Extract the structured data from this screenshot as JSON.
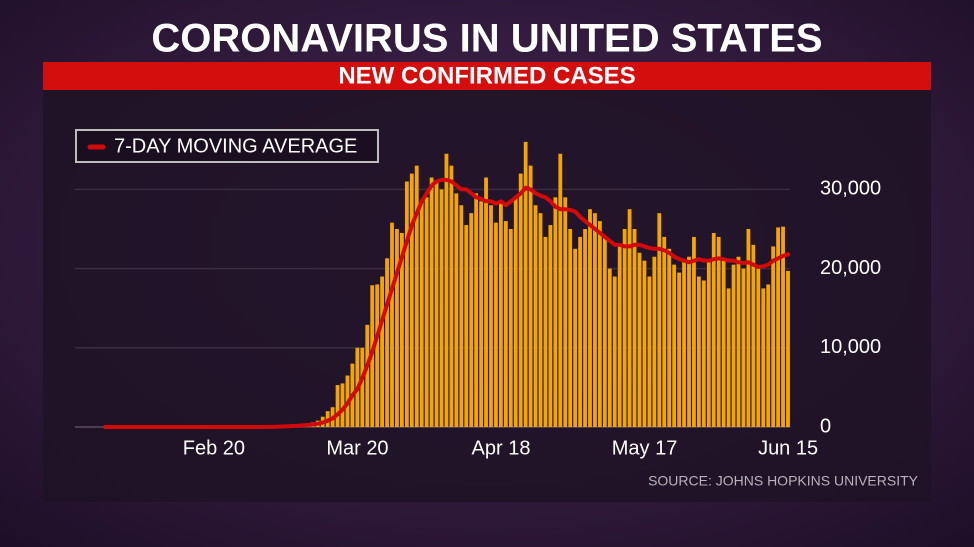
{
  "chart_data": {
    "type": "bar",
    "title": "CORONAVIRUS IN UNITED STATES",
    "subtitle": "NEW CONFIRMED CASES",
    "source": "SOURCE: JOHNS HOPKINS UNIVERSITY",
    "categories": [
      null,
      null,
      null,
      null,
      null,
      null,
      null,
      null,
      null,
      null,
      null,
      null,
      null,
      null,
      null,
      null,
      null,
      null,
      null,
      null,
      null,
      null,
      "Feb 20",
      null,
      null,
      null,
      null,
      null,
      null,
      null,
      null,
      null,
      null,
      null,
      null,
      null,
      null,
      null,
      null,
      null,
      null,
      null,
      null,
      null,
      null,
      null,
      null,
      null,
      null,
      null,
      null,
      "Mar 20",
      null,
      null,
      null,
      null,
      null,
      null,
      null,
      null,
      null,
      null,
      null,
      null,
      null,
      null,
      null,
      null,
      null,
      null,
      null,
      null,
      null,
      null,
      null,
      null,
      null,
      null,
      null,
      null,
      "Apr 18",
      null,
      null,
      null,
      null,
      null,
      null,
      null,
      null,
      null,
      null,
      null,
      null,
      null,
      null,
      null,
      null,
      null,
      null,
      null,
      null,
      null,
      null,
      null,
      null,
      null,
      null,
      null,
      null,
      "May 17",
      null,
      null,
      null,
      null,
      null,
      null,
      null,
      null,
      null,
      null,
      null,
      null,
      null,
      null,
      null,
      null,
      null,
      null,
      null,
      null,
      null,
      null,
      null,
      null,
      null,
      null,
      null,
      null,
      "Jun 15"
    ],
    "series": [
      {
        "color": "#f4a600",
        "values": [
          0,
          0,
          0,
          0,
          0,
          0,
          0,
          0,
          0,
          0,
          0,
          0,
          0,
          0,
          0,
          0,
          0,
          0,
          0,
          0,
          0,
          0,
          0,
          0,
          0,
          0,
          0,
          0,
          0,
          0,
          0,
          0,
          0,
          20,
          40,
          60,
          100,
          130,
          200,
          250,
          300,
          500,
          600,
          800,
          1300,
          2000,
          2500,
          5300,
          5500,
          6500,
          8000,
          10000,
          10000,
          12900,
          17900,
          18000,
          19000,
          21300,
          25800,
          25000,
          24500,
          31000,
          32000,
          33000,
          28500,
          29000,
          31500,
          31000,
          30000,
          34500,
          33000,
          29500,
          28000,
          25500,
          27000,
          29500,
          28500,
          31500,
          28000,
          25800,
          28500,
          26000,
          25000,
          29000,
          32000,
          36000,
          33000,
          28000,
          27000,
          24000,
          25500,
          29000,
          34500,
          29000,
          25000,
          22500,
          24000,
          25000,
          27500,
          27000,
          26000,
          24000,
          20000,
          19000,
          23000,
          25000,
          27500,
          25000,
          22000,
          21000,
          19000,
          21500,
          27000,
          24000,
          22500,
          20500,
          19500,
          21000,
          21500,
          24000,
          19000,
          18500,
          21000,
          24500,
          24000,
          21000,
          17500,
          20500,
          21500,
          20000,
          25000,
          23000,
          20000,
          17500,
          18000,
          22800,
          25200,
          25300,
          19700
        ]
      },
      {
        "name": "7-DAY MOVING AVERAGE",
        "type": "line",
        "color": "#d20a0a",
        "values": [
          0,
          0,
          0,
          0,
          0,
          0,
          0,
          0,
          0,
          0,
          0,
          0,
          0,
          0,
          0,
          0,
          0,
          0,
          0,
          0,
          0,
          0,
          0,
          0,
          0,
          0,
          0,
          0,
          0,
          0,
          0,
          0,
          0,
          10,
          20,
          40,
          60,
          90,
          120,
          160,
          200,
          260,
          330,
          420,
          560,
          800,
          1100,
          1600,
          2200,
          3000,
          4000,
          4800,
          6200,
          7800,
          9500,
          11500,
          13500,
          15500,
          17500,
          19500,
          21500,
          23500,
          25500,
          27000,
          28500,
          29500,
          30500,
          31000,
          31200,
          31200,
          31000,
          30500,
          30000,
          30000,
          29500,
          29000,
          28800,
          28500,
          28500,
          28200,
          28500,
          28000,
          28500,
          29000,
          29500,
          30200,
          30000,
          29500,
          29200,
          29000,
          28500,
          27800,
          27500,
          27500,
          27400,
          27200,
          26500,
          26000,
          25500,
          25000,
          24500,
          24000,
          23500,
          23000,
          23000,
          22800,
          22800,
          23000,
          23000,
          22800,
          22600,
          22500,
          22500,
          22300,
          22000,
          21500,
          21200,
          21000,
          20800,
          21000,
          21200,
          21000,
          21000,
          21200,
          21300,
          21200,
          21000,
          21000,
          20800,
          20700,
          20800,
          20500,
          20200,
          20300,
          20500,
          21000,
          21300,
          21600,
          21800
        ]
      }
    ],
    "ylim": [
      0,
      37500
    ],
    "yticks": [
      0,
      {
        "value": 10000,
        "label": "10,000"
      },
      {
        "value": 20000,
        "label": "20,000"
      },
      {
        "value": 30000,
        "label": "30,000"
      }
    ],
    "grid": true,
    "legend": "top-left"
  }
}
